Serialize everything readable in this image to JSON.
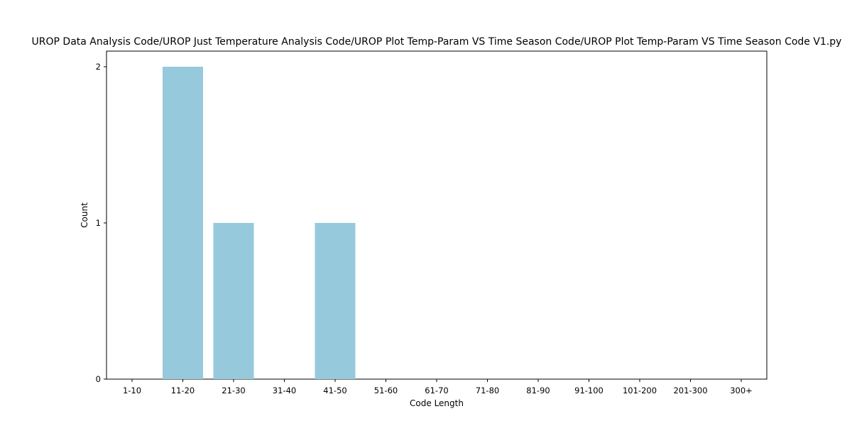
{
  "chart_data": {
    "type": "bar",
    "title": "UROP Data Analysis Code/UROP Just Temperature Analysis Code/UROP Plot Temp-Param VS Time Season Code/UROP Plot Temp-Param VS Time Season Code V1.py",
    "xlabel": "Code Length",
    "ylabel": "Count",
    "categories": [
      "1-10",
      "11-20",
      "21-30",
      "31-40",
      "41-50",
      "51-60",
      "61-70",
      "71-80",
      "81-90",
      "91-100",
      "101-200",
      "201-300",
      "300+"
    ],
    "values": [
      0,
      2,
      1,
      0,
      1,
      0,
      0,
      0,
      0,
      0,
      0,
      0,
      0
    ],
    "ylim": [
      0,
      2.1
    ],
    "yticks": [
      0,
      1,
      2
    ],
    "bar_color": "#96c9dc",
    "grid": false,
    "legend": "none"
  }
}
